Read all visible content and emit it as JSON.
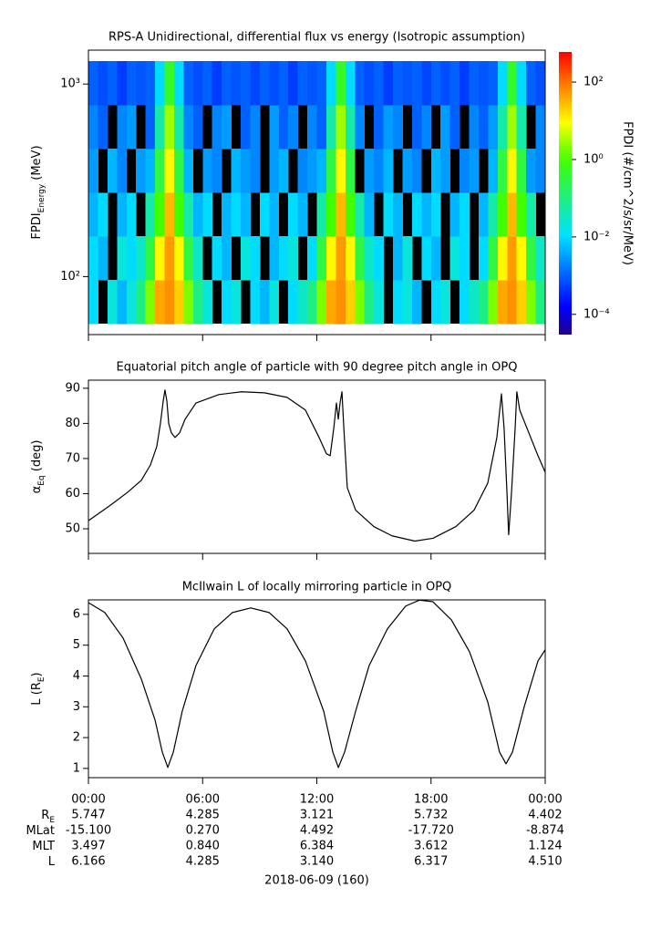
{
  "chart_data": [
    {
      "type": "heatmap",
      "title": "RPS-A Unidirectional, differential flux vs energy (Isotropic assumption)",
      "y_label": [
        {
          "text": "FPDI"
        },
        {
          "text": "Energy",
          "sub": true
        },
        {
          "text": " (MeV)"
        }
      ],
      "x_bins": [
        0,
        0.5,
        1,
        1.5,
        2,
        2.5,
        3,
        3.5,
        4,
        4.5,
        5,
        5.5,
        6,
        6.5,
        7,
        7.5,
        8,
        8.5,
        9,
        9.5,
        10,
        10.5,
        11,
        11.5,
        12,
        12.5,
        13,
        13.5,
        14,
        14.5,
        15,
        15.5,
        16,
        16.5,
        17,
        17.5,
        18,
        18.5,
        19,
        19.5,
        20,
        20.5,
        21,
        21.5,
        22,
        22.5,
        23,
        23.5,
        24
      ],
      "y_bins": [
        57,
        96,
        162,
        273,
        461,
        777,
        1313
      ],
      "z": [
        [
          0.01,
          null,
          0.02,
          0.005,
          0.02,
          0.1,
          2,
          40,
          60,
          20,
          2,
          0.1,
          0.02,
          null,
          0.01,
          0.02,
          null,
          0.01,
          0.005,
          0.02,
          null,
          0.01,
          0.03,
          0.1,
          2,
          40,
          60,
          20,
          2,
          0.1,
          0.02,
          null,
          0.01,
          0.02,
          0.005,
          null,
          0.01,
          0.02,
          null,
          0.01,
          0.03,
          0.1,
          2,
          40,
          60,
          20,
          2,
          0.1
        ],
        [
          0.01,
          0.005,
          null,
          0.02,
          0.01,
          0.03,
          0.3,
          10,
          50,
          10,
          0.3,
          0.03,
          null,
          0.01,
          0.005,
          null,
          0.02,
          0.01,
          null,
          0.005,
          0.01,
          0.02,
          null,
          0.01,
          0.3,
          10,
          50,
          10,
          0.3,
          0.03,
          0.01,
          null,
          0.005,
          0.02,
          null,
          0.01,
          0.005,
          null,
          0.02,
          0.01,
          null,
          0.01,
          0.3,
          10,
          50,
          10,
          0.3,
          0.03
        ],
        [
          0.005,
          0.01,
          null,
          0.005,
          0.01,
          null,
          0.05,
          1,
          30,
          1,
          0.05,
          0.005,
          0.01,
          null,
          0.005,
          0.01,
          0.005,
          null,
          0.01,
          0.005,
          null,
          0.01,
          0.005,
          null,
          0.05,
          1,
          30,
          1,
          0.05,
          0.005,
          null,
          0.01,
          0.005,
          null,
          0.01,
          0.005,
          0.01,
          null,
          0.005,
          0.01,
          null,
          0.005,
          0.05,
          1,
          30,
          1,
          0.05,
          null
        ],
        [
          0.003,
          null,
          0.005,
          0.002,
          null,
          0.003,
          0.005,
          0.3,
          10,
          0.3,
          0.005,
          null,
          0.003,
          0.002,
          null,
          0.005,
          0.003,
          0.002,
          null,
          0.003,
          0.005,
          null,
          0.002,
          0.003,
          0.005,
          0.3,
          10,
          0.3,
          null,
          0.003,
          0.002,
          0.005,
          null,
          0.003,
          0.002,
          null,
          0.005,
          0.003,
          null,
          0.002,
          0.003,
          null,
          0.005,
          0.3,
          10,
          0.3,
          0.003,
          0.002
        ],
        [
          0.002,
          0.001,
          null,
          0.002,
          0.003,
          null,
          0.001,
          0.05,
          3,
          0.05,
          0.002,
          0.001,
          null,
          0.002,
          0.003,
          null,
          0.001,
          0.002,
          null,
          0.003,
          0.001,
          0.002,
          null,
          0.002,
          0.001,
          0.05,
          3,
          0.05,
          0.002,
          null,
          0.001,
          0.003,
          0.002,
          null,
          0.001,
          0.002,
          null,
          0.003,
          0.001,
          null,
          0.002,
          0.001,
          0.003,
          0.05,
          3,
          0.05,
          null,
          0.002
        ],
        [
          0.001,
          0.0007,
          0.001,
          0.0005,
          0.001,
          0.0008,
          0.001,
          0.01,
          0.5,
          0.01,
          0.001,
          0.0007,
          0.001,
          0.0005,
          0.001,
          0.0008,
          0.001,
          0.0006,
          0.001,
          0.0007,
          0.001,
          0.0005,
          0.001,
          0.0008,
          0.001,
          0.01,
          0.5,
          0.01,
          0.001,
          0.0007,
          0.001,
          0.0005,
          0.001,
          0.0008,
          0.001,
          0.0006,
          0.001,
          0.0007,
          0.001,
          0.0005,
          0.001,
          0.0008,
          0.001,
          0.01,
          0.5,
          0.01,
          0.001,
          0.0007
        ]
      ],
      "missing_color": "#000000",
      "xlim": [
        0,
        24
      ],
      "xticks": [
        0,
        6,
        12,
        18,
        24
      ],
      "ylim": [
        50,
        1500
      ],
      "y_log": true,
      "yticks": [
        {
          "value": 100,
          "label": "10²"
        },
        {
          "value": 1000,
          "label": "10³"
        }
      ],
      "colorbar": {
        "label": "FPDI (#/cm^2/s/sr/MeV)",
        "zlim": [
          3e-05,
          600
        ],
        "log": true,
        "colormap": "rainbow",
        "ticks": [
          {
            "value": 0.0001,
            "label": "10⁻⁴"
          },
          {
            "value": 0.01,
            "label": "10⁻²"
          },
          {
            "value": 1,
            "label": "10⁰"
          },
          {
            "value": 100,
            "label": "10²"
          }
        ]
      }
    },
    {
      "type": "line",
      "title": "Equatorial pitch angle of particle with 90 degree pitch angle in OPQ",
      "y_label": [
        {
          "text": "α"
        },
        {
          "text": "Eq",
          "sub": true
        },
        {
          "text": " (deg)"
        }
      ],
      "x": [
        0,
        1.1,
        2.06,
        2.78,
        3.26,
        3.59,
        3.78,
        3.93,
        4.02,
        4.12,
        4.22,
        4.36,
        4.55,
        4.79,
        5.08,
        5.65,
        6.85,
        8.05,
        9.25,
        10.44,
        11.4,
        12.12,
        12.5,
        12.7,
        12.89,
        13.03,
        13.13,
        13.22,
        13.32,
        13.42,
        13.6,
        14.04,
        15.0,
        15.95,
        17.15,
        18.1,
        19.3,
        20.26,
        20.98,
        21.46,
        21.7,
        21.84,
        21.99,
        22.08,
        22.23,
        22.42,
        22.51,
        22.66,
        23.14,
        23.62,
        24
      ],
      "values": [
        52.3,
        56.5,
        60.4,
        63.8,
        68.2,
        73.4,
        79.9,
        86.4,
        89.5,
        86.4,
        79.9,
        77.3,
        76,
        77.3,
        81.2,
        85.8,
        88.2,
        89,
        88.7,
        87.4,
        83.8,
        76,
        71.4,
        70.8,
        78.6,
        85.8,
        81.2,
        85.8,
        89,
        78.6,
        61.7,
        55.3,
        50.6,
        48,
        46.5,
        47.3,
        50.6,
        55.3,
        63,
        76,
        88.4,
        78.6,
        60.4,
        48.3,
        60.4,
        78.6,
        89,
        83.8,
        77.3,
        70.8,
        66.1
      ],
      "color": "#000000",
      "xlim": [
        0,
        24
      ],
      "xticks": [
        0,
        6,
        12,
        18,
        24
      ],
      "ylim": [
        43,
        92.3
      ],
      "yticks": [
        50,
        60,
        70,
        80,
        90
      ]
    },
    {
      "type": "line",
      "title": "McIlwain L of locally mirroring particle in OPQ",
      "y_label": [
        {
          "text": "L (R"
        },
        {
          "text": "E",
          "sub": true
        },
        {
          "text": ")"
        }
      ],
      "x": [
        0,
        0.86,
        1.82,
        2.78,
        3.5,
        3.88,
        4.17,
        4.46,
        4.93,
        5.65,
        6.61,
        7.57,
        8.53,
        9.49,
        10.44,
        11.4,
        12.36,
        12.84,
        13.13,
        13.46,
        14.04,
        14.75,
        15.71,
        16.67,
        17.39,
        18.1,
        19.07,
        20.02,
        20.98,
        21.6,
        21.94,
        22.28,
        22.9,
        23.62,
        24
      ],
      "values": [
        6.38,
        6.06,
        5.23,
        3.9,
        2.57,
        1.53,
        1.03,
        1.53,
        2.86,
        4.34,
        5.53,
        6.06,
        6.21,
        6.06,
        5.53,
        4.49,
        2.86,
        1.53,
        1.03,
        1.53,
        2.86,
        4.34,
        5.53,
        6.27,
        6.46,
        6.41,
        5.82,
        4.79,
        3.16,
        1.53,
        1.15,
        1.53,
        3.01,
        4.49,
        4.85
      ],
      "color": "#000000",
      "xlim": [
        0,
        24
      ],
      "xticks": [
        {
          "value": 0,
          "label": "00:00"
        },
        {
          "value": 6,
          "label": "06:00"
        },
        {
          "value": 12,
          "label": "12:00"
        },
        {
          "value": 18,
          "label": "18:00"
        },
        {
          "value": 24,
          "label": "00:00"
        }
      ],
      "ylim": [
        0.7,
        6.47
      ],
      "yticks": [
        1,
        2,
        3,
        4,
        5,
        6
      ]
    }
  ],
  "ephemeris": {
    "rows": [
      {
        "label": [
          {
            "text": "R"
          },
          {
            "text": "E",
            "sub": true
          }
        ],
        "values": [
          "5.747",
          "4.285",
          "3.121",
          "5.732",
          "4.402"
        ]
      },
      {
        "label": [
          {
            "text": "MLat"
          }
        ],
        "values": [
          "-15.100",
          "0.270",
          "4.492",
          "-17.720",
          "-8.874"
        ]
      },
      {
        "label": [
          {
            "text": "MLT"
          }
        ],
        "values": [
          "3.497",
          "0.840",
          "6.384",
          "3.612",
          "1.124"
        ]
      },
      {
        "label": [
          {
            "text": "L"
          }
        ],
        "values": [
          "6.166",
          "4.285",
          "3.140",
          "6.317",
          "4.510"
        ]
      }
    ],
    "date": "2018-06-09 (160)"
  }
}
